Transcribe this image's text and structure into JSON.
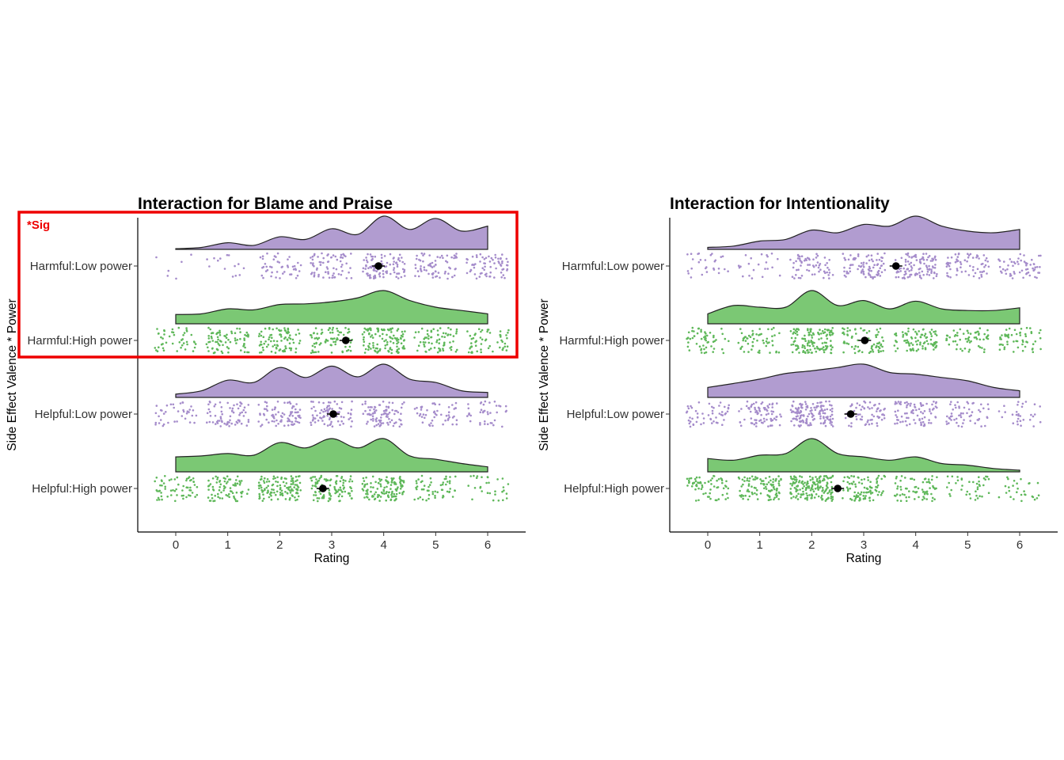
{
  "colors": {
    "low_power": "#b19cd0",
    "high_power": "#7bc874",
    "low_power_points": "#a58ccb",
    "high_power_points": "#5fb85a",
    "outline": "#222222",
    "mean_point": "#000000",
    "highlight": "#ee0000"
  },
  "annotation": {
    "sig_label": "*Sig",
    "highlighted_categories": [
      "Harmful:Low power",
      "Harmful:High power"
    ]
  },
  "chart_data": [
    {
      "type": "raincloud",
      "title": "Interaction for Blame and Praise",
      "xlabel": "Rating",
      "ylabel": "Side Effect Valence * Power",
      "x_ticks": [
        0,
        1,
        2,
        3,
        4,
        5,
        6
      ],
      "xlim": [
        -0.7,
        6.75
      ],
      "grid": false,
      "legend": "none",
      "groups": [
        {
          "category": "Harmful:Low power",
          "color_key": "low_power",
          "mean": 3.9,
          "rating_counts": [
            6,
            14,
            45,
            68,
            90,
            70,
            68
          ],
          "density": [
            0.02,
            0.06,
            0.2,
            0.12,
            0.38,
            0.3,
            0.62,
            0.45,
            1.0,
            0.6,
            0.93,
            0.55,
            0.7
          ]
        },
        {
          "category": "Harmful:High power",
          "color_key": "high_power",
          "mean": 3.27,
          "rating_counts": [
            45,
            80,
            85,
            75,
            112,
            70,
            55
          ],
          "density": [
            0.28,
            0.3,
            0.45,
            0.42,
            0.58,
            0.6,
            0.66,
            0.78,
            1.0,
            0.7,
            0.5,
            0.4,
            0.3
          ]
        },
        {
          "category": "Helpful:Low power",
          "color_key": "low_power",
          "mean": 3.03,
          "rating_counts": [
            38,
            68,
            82,
            75,
            86,
            50,
            40
          ],
          "density": [
            0.1,
            0.2,
            0.52,
            0.45,
            0.9,
            0.6,
            0.94,
            0.62,
            1.0,
            0.55,
            0.45,
            0.2,
            0.15
          ]
        },
        {
          "category": "Helpful:High power",
          "color_key": "high_power",
          "mean": 2.83,
          "rating_counts": [
            60,
            75,
            120,
            105,
            118,
            55,
            30
          ],
          "density": [
            0.45,
            0.48,
            0.55,
            0.5,
            0.88,
            0.72,
            1.0,
            0.72,
            1.0,
            0.48,
            0.38,
            0.25,
            0.15
          ]
        }
      ]
    },
    {
      "type": "raincloud",
      "title": "Interaction for Intentionality",
      "xlabel": "Rating",
      "ylabel": "Side Effect Valence * Power",
      "x_ticks": [
        0,
        1,
        2,
        3,
        4,
        5,
        6
      ],
      "xlim": [
        -0.7,
        6.75
      ],
      "grid": false,
      "legend": "none",
      "groups": [
        {
          "category": "Harmful:Low power",
          "color_key": "low_power",
          "mean": 3.62,
          "rating_counts": [
            28,
            22,
            62,
            84,
            105,
            65,
            60
          ],
          "density": [
            0.06,
            0.1,
            0.25,
            0.3,
            0.58,
            0.5,
            0.75,
            0.7,
            1.0,
            0.7,
            0.55,
            0.5,
            0.6
          ]
        },
        {
          "category": "Harmful:High power",
          "color_key": "high_power",
          "mean": 3.02,
          "rating_counts": [
            55,
            55,
            125,
            72,
            88,
            60,
            58
          ],
          "density": [
            0.3,
            0.55,
            0.5,
            0.5,
            1.0,
            0.55,
            0.7,
            0.45,
            0.68,
            0.45,
            0.4,
            0.4,
            0.48
          ]
        },
        {
          "category": "Helpful:Low power",
          "color_key": "low_power",
          "mean": 2.75,
          "rating_counts": [
            52,
            80,
            140,
            62,
            80,
            55,
            30
          ],
          "density": [
            0.3,
            0.42,
            0.55,
            0.72,
            0.8,
            0.9,
            1.0,
            0.75,
            0.7,
            0.6,
            0.5,
            0.3,
            0.2
          ]
        },
        {
          "category": "Helpful:High power",
          "color_key": "high_power",
          "mean": 2.5,
          "rating_counts": [
            65,
            100,
            165,
            90,
            70,
            40,
            28
          ],
          "density": [
            0.4,
            0.35,
            0.5,
            0.55,
            1.0,
            0.55,
            0.45,
            0.35,
            0.45,
            0.25,
            0.2,
            0.1,
            0.05
          ]
        }
      ]
    }
  ]
}
